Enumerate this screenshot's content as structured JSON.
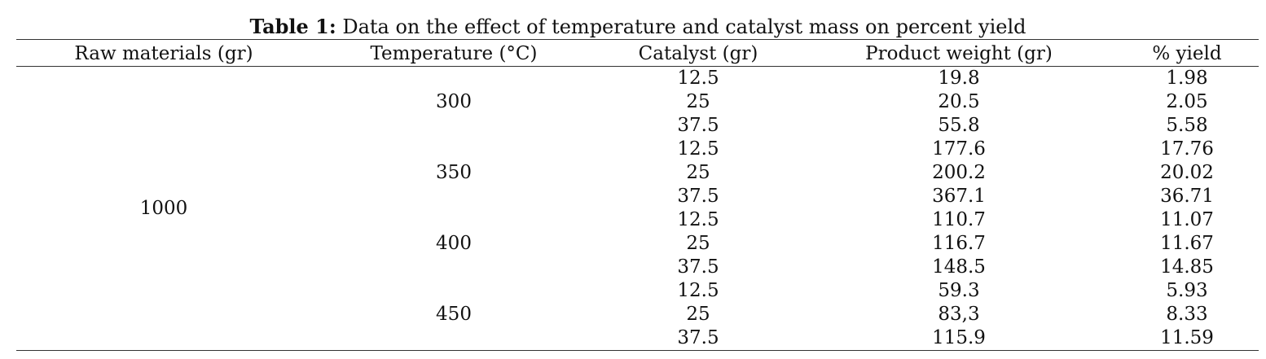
{
  "caption": {
    "label": "Table 1:",
    "text": " Data on the effect of temperature and catalyst mass on percent yield"
  },
  "table": {
    "headers": [
      "Raw materials (gr)",
      "Temperature (°C)",
      "Catalyst (gr)",
      "Product weight (gr)",
      "% yield"
    ],
    "raw_material": "1000",
    "groups": [
      {
        "temperature": "300",
        "rows": [
          {
            "catalyst": "12.5",
            "product": "19.8",
            "yield": "1.98"
          },
          {
            "catalyst": "25",
            "product": "20.5",
            "yield": "2.05"
          },
          {
            "catalyst": "37.5",
            "product": "55.8",
            "yield": "5.58"
          }
        ]
      },
      {
        "temperature": "350",
        "rows": [
          {
            "catalyst": "12.5",
            "product": "177.6",
            "yield": "17.76"
          },
          {
            "catalyst": "25",
            "product": "200.2",
            "yield": "20.02"
          },
          {
            "catalyst": "37.5",
            "product": "367.1",
            "yield": "36.71"
          }
        ]
      },
      {
        "temperature": "400",
        "rows": [
          {
            "catalyst": "12.5",
            "product": "110.7",
            "yield": "11.07"
          },
          {
            "catalyst": "25",
            "product": "116.7",
            "yield": "11.67"
          },
          {
            "catalyst": "37.5",
            "product": "148.5",
            "yield": "14.85"
          }
        ]
      },
      {
        "temperature": "450",
        "rows": [
          {
            "catalyst": "12.5",
            "product": "59.3",
            "yield": "5.93"
          },
          {
            "catalyst": "25",
            "product": "83,3",
            "yield": "8.33"
          },
          {
            "catalyst": "37.5",
            "product": "115.9",
            "yield": "11.59"
          }
        ]
      }
    ]
  }
}
